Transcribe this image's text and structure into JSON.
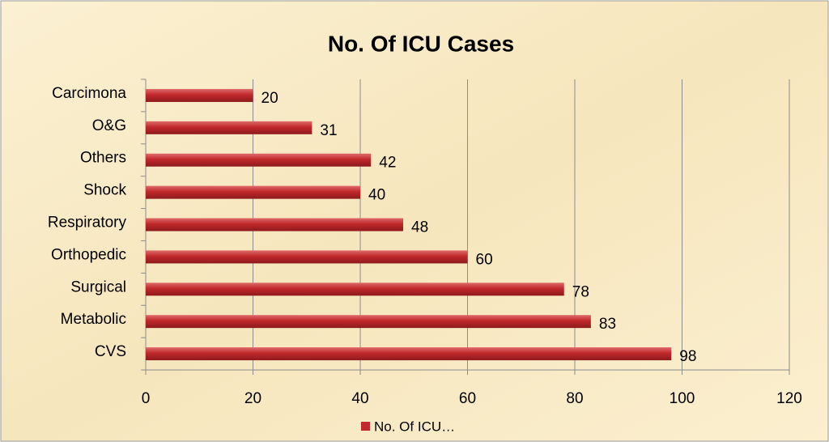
{
  "chart_data": {
    "type": "bar",
    "orientation": "horizontal",
    "title": "No. Of ICU Cases",
    "categories": [
      "Carcimona",
      "O&G",
      "Others",
      "Shock",
      "Respiratory",
      "Orthopedic",
      "Surgical",
      "Metabolic",
      "CVS"
    ],
    "series": [
      {
        "name": "No. Of ICU…",
        "color": "#c0282b",
        "values": [
          20,
          31,
          42,
          40,
          48,
          60,
          78,
          83,
          98
        ]
      }
    ],
    "xlim": [
      0,
      120
    ],
    "xticks": [
      0,
      20,
      40,
      60,
      80,
      100,
      120
    ],
    "grid": true,
    "legend": "bottom"
  }
}
